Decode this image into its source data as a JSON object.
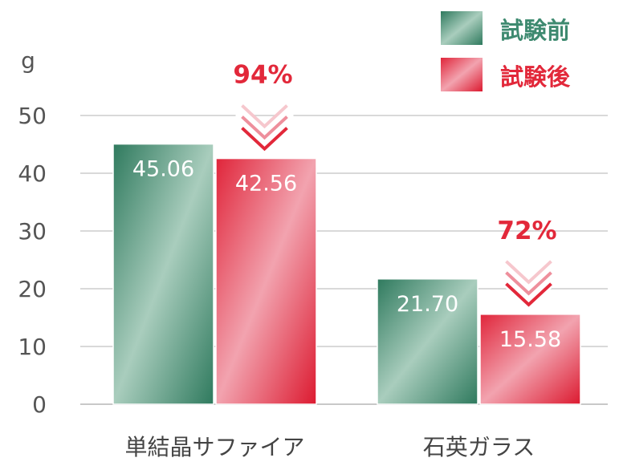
{
  "chart_data": {
    "type": "bar",
    "unit_label": "g",
    "categories": [
      "単結晶サファイア",
      "石英ガラス"
    ],
    "series": [
      {
        "name": "試験前",
        "values": [
          45.06,
          21.7
        ],
        "value_labels": [
          "45.06",
          "21.70"
        ],
        "color": "#3e8a70"
      },
      {
        "name": "試験後",
        "values": [
          42.56,
          15.58
        ],
        "value_labels": [
          "42.56",
          "15.58"
        ],
        "color": "#e2283a"
      }
    ],
    "yticks": [
      "0",
      "10",
      "20",
      "30",
      "40",
      "50"
    ],
    "ylim": [
      0,
      55
    ],
    "ratio_labels": [
      "94%",
      "72%"
    ],
    "legend_position": "top-right",
    "grid": true
  }
}
